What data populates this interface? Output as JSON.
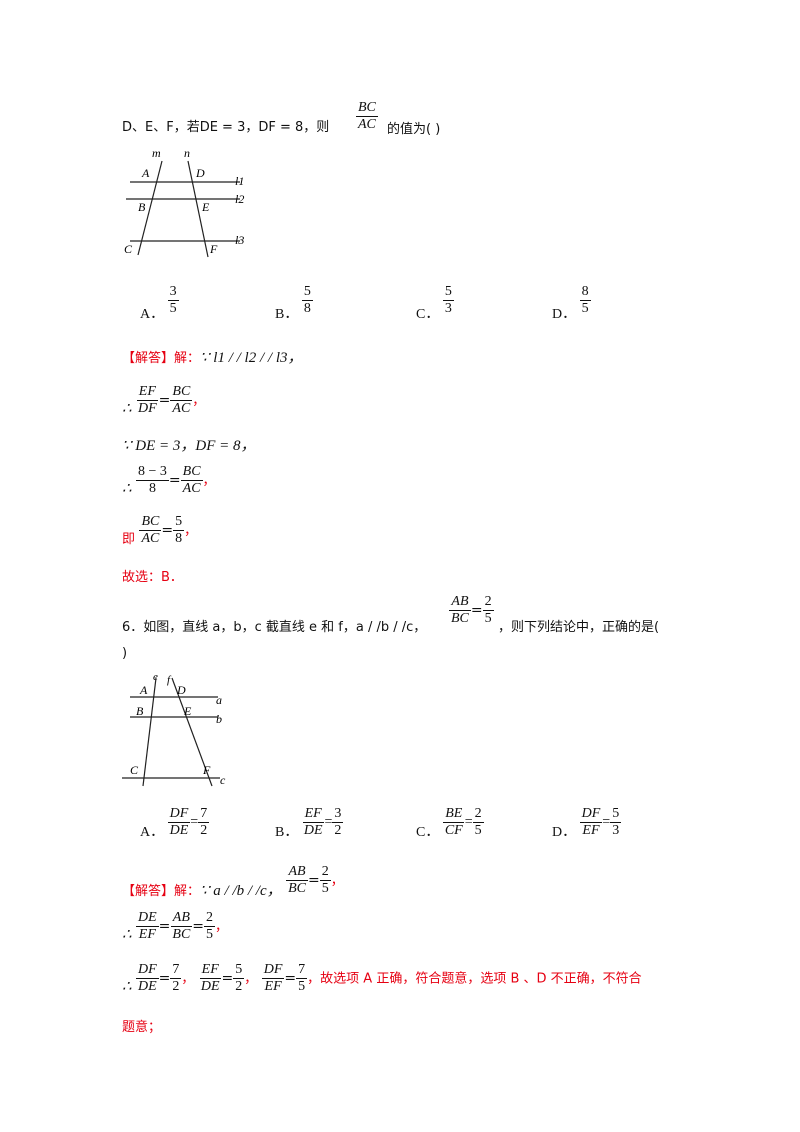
{
  "q5": {
    "stem_lead": "D、E、F，若DE = 3，DF = 8，则",
    "stem_frac": {
      "num": "BC",
      "den": "AC"
    },
    "stem_tail": "的值为(    )",
    "figure_labels": {
      "m": "m",
      "n": "n",
      "A": "A",
      "D": "D",
      "l1": "l1",
      "B": "B",
      "E": "E",
      "l2": "l2",
      "C": "C",
      "F": "F",
      "l3": "l3"
    },
    "options": [
      {
        "letter": "A．",
        "num": "3",
        "den": "5"
      },
      {
        "letter": "B．",
        "num": "5",
        "den": "8"
      },
      {
        "letter": "C．",
        "num": "5",
        "den": "3"
      },
      {
        "letter": "D．",
        "num": "8",
        "den": "5"
      }
    ],
    "solution": {
      "tag": "【解答】解：",
      "line1": "∵ l1 / / l2 / / l3，",
      "line2_prefix": "∴",
      "line2": {
        "f1n": "EF",
        "f1d": "DF",
        "f2n": "BC",
        "f2d": "AC",
        "end": "，"
      },
      "line3": "∵ DE = 3，DF = 8，",
      "line4_prefix": "∴",
      "line4": {
        "f1n": "8 − 3",
        "f1d": "8",
        "f2n": "BC",
        "f2d": "AC",
        "end": "，"
      },
      "line5_prefix": "即",
      "line5": {
        "f1n": "BC",
        "f1d": "AC",
        "f2n": "5",
        "f2d": "8",
        "end": "，"
      },
      "answer": "故选：B．"
    }
  },
  "q6": {
    "stem_lead": "6．如图，直线 a，b，c 截直线 e 和 f，a / /b / /c，",
    "stem_frac": {
      "num": "AB",
      "den": "BC",
      "rnum": "2",
      "rden": "5"
    },
    "stem_tail": "，则下列结论中，正确的是(",
    "stem_close": ")",
    "figure_labels": {
      "e": "e",
      "f": "f",
      "A": "A",
      "D": "D",
      "a": "a",
      "B": "B",
      "E": "E",
      "b": "b",
      "C": "C",
      "F": "F",
      "c": "c"
    },
    "options": [
      {
        "letter": "A．",
        "fn": "DF",
        "fd": "DE",
        "vn": "7",
        "vd": "2"
      },
      {
        "letter": "B．",
        "fn": "EF",
        "fd": "DE",
        "vn": "3",
        "vd": "2"
      },
      {
        "letter": "C．",
        "fn": "BE",
        "fd": "CF",
        "vn": "2",
        "vd": "5"
      },
      {
        "letter": "D．",
        "fn": "DF",
        "fd": "EF",
        "vn": "5",
        "vd": "3"
      }
    ],
    "solution": {
      "tag": "【解答】解：",
      "line1": "∵ a / /b / /c，",
      "line1_frac": {
        "num": "AB",
        "den": "BC",
        "vn": "2",
        "vd": "5",
        "end": "，"
      },
      "line2_prefix": "∴",
      "line2": {
        "f1n": "DE",
        "f1d": "EF",
        "f2n": "AB",
        "f2d": "BC",
        "f3n": "2",
        "f3d": "5",
        "end": "，"
      },
      "line3_prefix": "∴",
      "line3": [
        {
          "fn": "DF",
          "fd": "DE",
          "vn": "7",
          "vd": "2"
        },
        {
          "fn": "EF",
          "fd": "DE",
          "vn": "5",
          "vd": "2"
        },
        {
          "fn": "DF",
          "fd": "EF",
          "vn": "7",
          "vd": "5"
        }
      ],
      "line3_text": "，故选项 A 正确，符合题意，选项 B 、D 不正确，不符合",
      "line4": "题意；"
    }
  }
}
